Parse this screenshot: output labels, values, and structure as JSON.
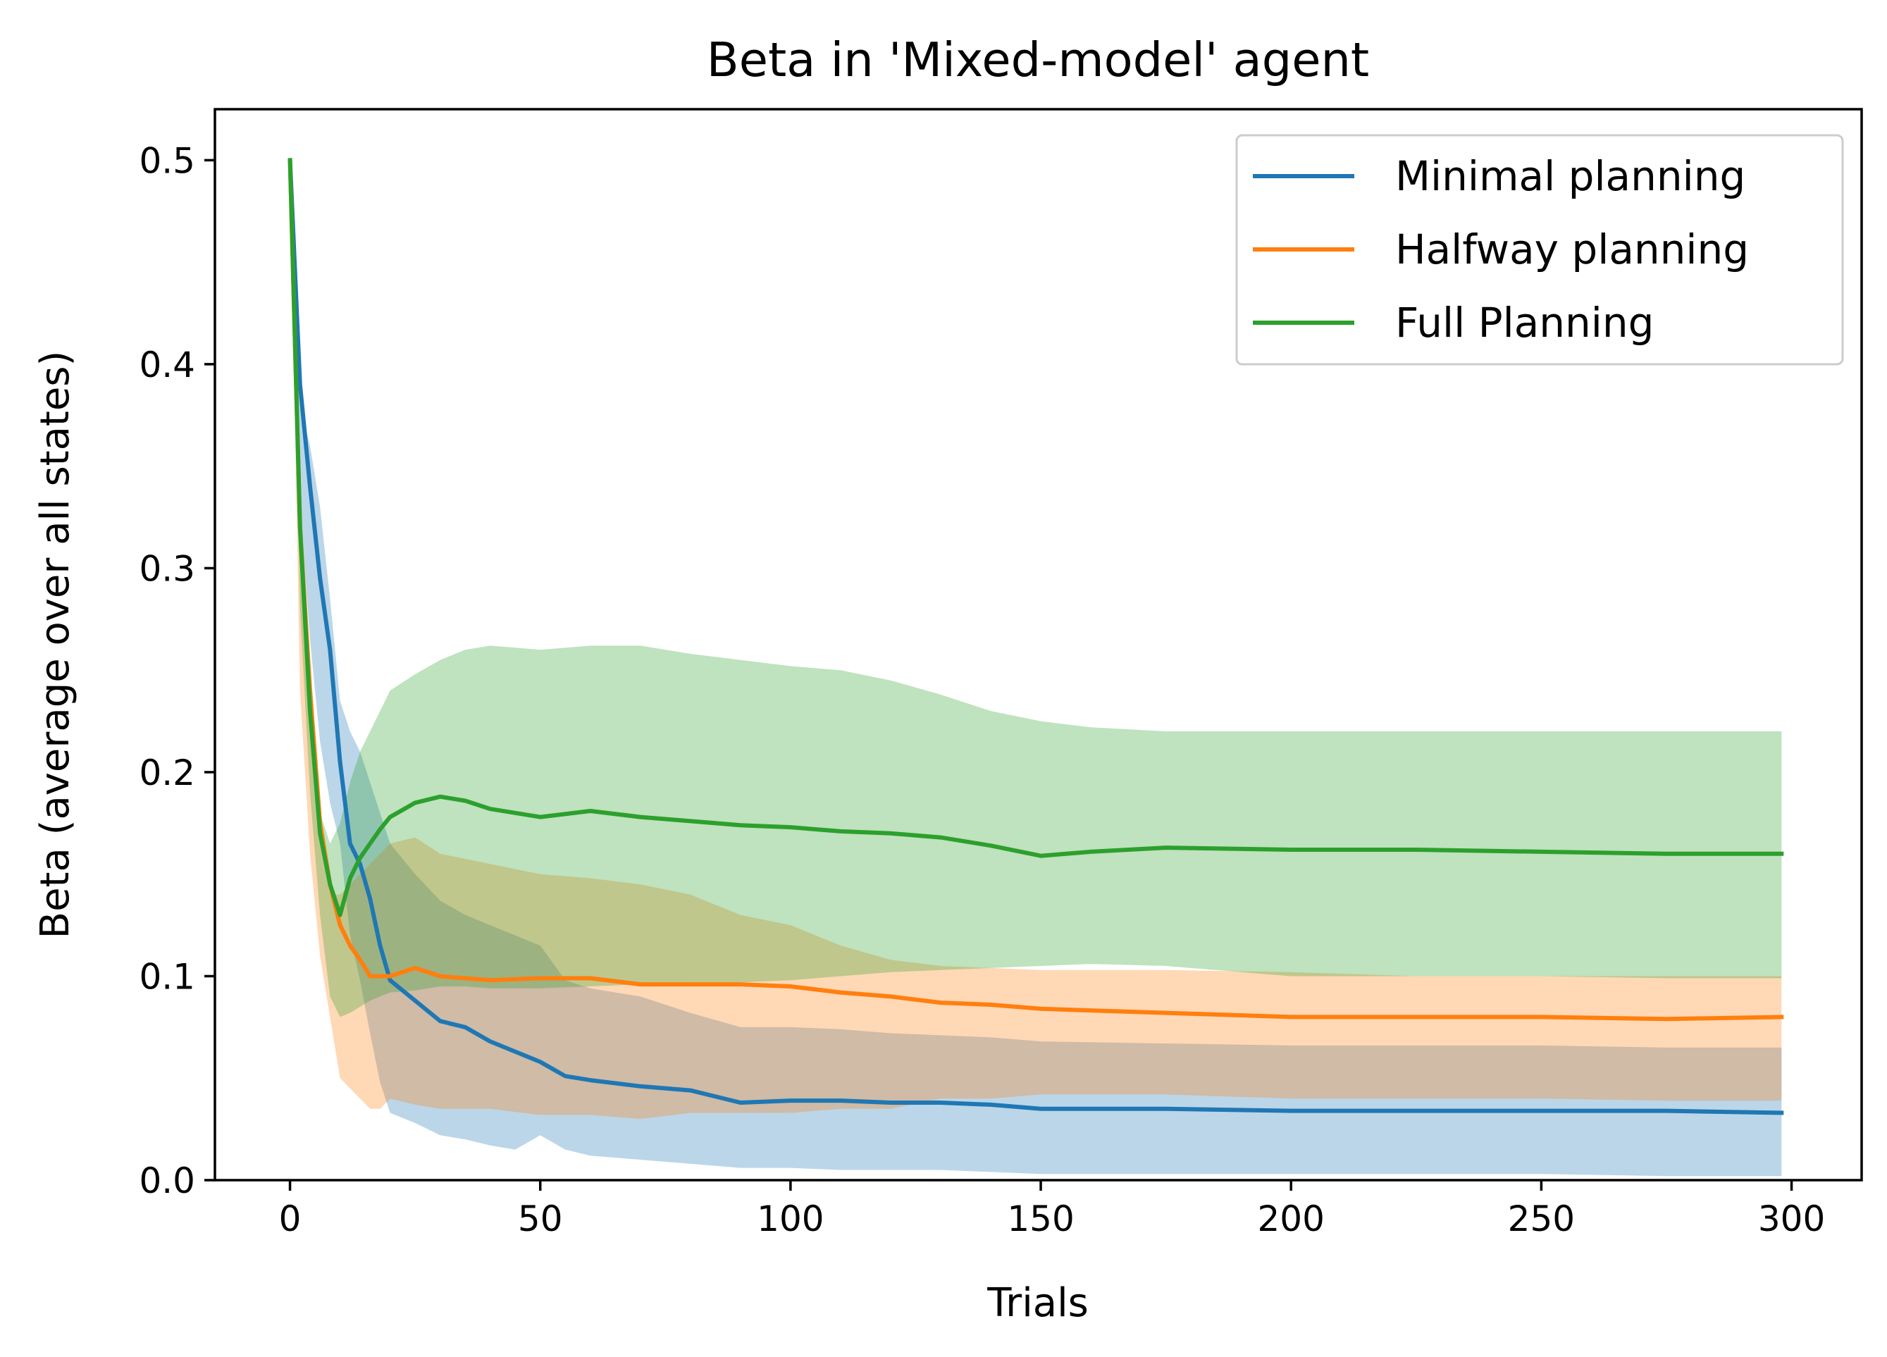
{
  "chart_data": {
    "type": "line",
    "title": "Beta in 'Mixed-model' agent",
    "xlabel": "Trials",
    "ylabel": "Beta (average over all states)",
    "xlim": [
      -15,
      314
    ],
    "ylim": [
      0.0,
      0.525
    ],
    "xticks": [
      0,
      50,
      100,
      150,
      200,
      250,
      300
    ],
    "yticks": [
      0.0,
      0.1,
      0.2,
      0.3,
      0.4,
      0.5
    ],
    "xtick_labels": [
      "0",
      "50",
      "100",
      "150",
      "200",
      "250",
      "300"
    ],
    "ytick_labels": [
      "0.0",
      "0.1",
      "0.2",
      "0.3",
      "0.4",
      "0.5"
    ],
    "grid": false,
    "legend_position": "top-right",
    "shaded_band": "mean ± spread",
    "series": [
      {
        "name": "Minimal planning",
        "color": "#1f77b4",
        "x": [
          0,
          2,
          4,
          6,
          8,
          10,
          12,
          14,
          16,
          18,
          20,
          25,
          30,
          35,
          40,
          45,
          50,
          55,
          60,
          70,
          80,
          90,
          100,
          110,
          120,
          130,
          140,
          150,
          175,
          200,
          225,
          250,
          275,
          298
        ],
        "y": [
          0.5,
          0.39,
          0.34,
          0.295,
          0.26,
          0.205,
          0.165,
          0.155,
          0.138,
          0.115,
          0.098,
          0.088,
          0.078,
          0.075,
          0.068,
          0.063,
          0.058,
          0.051,
          0.049,
          0.046,
          0.044,
          0.038,
          0.039,
          0.039,
          0.038,
          0.038,
          0.037,
          0.035,
          0.035,
          0.034,
          0.034,
          0.034,
          0.034,
          0.033
        ],
        "upper": [
          0.5,
          0.38,
          0.36,
          0.33,
          0.285,
          0.235,
          0.22,
          0.21,
          0.195,
          0.18,
          0.165,
          0.15,
          0.137,
          0.13,
          0.125,
          0.12,
          0.115,
          0.098,
          0.094,
          0.09,
          0.082,
          0.075,
          0.075,
          0.074,
          0.072,
          0.071,
          0.07,
          0.068,
          0.067,
          0.066,
          0.066,
          0.066,
          0.065,
          0.065
        ],
        "lower": [
          0.5,
          0.33,
          0.265,
          0.215,
          0.185,
          0.165,
          0.12,
          0.098,
          0.072,
          0.048,
          0.033,
          0.028,
          0.022,
          0.02,
          0.017,
          0.015,
          0.022,
          0.015,
          0.012,
          0.01,
          0.008,
          0.006,
          0.006,
          0.005,
          0.005,
          0.005,
          0.004,
          0.003,
          0.003,
          0.003,
          0.003,
          0.003,
          0.002,
          0.002
        ]
      },
      {
        "name": "Halfway planning",
        "color": "#ff7f0e",
        "x": [
          0,
          2,
          4,
          6,
          8,
          10,
          12,
          14,
          16,
          18,
          20,
          25,
          30,
          40,
          50,
          60,
          70,
          80,
          90,
          100,
          110,
          120,
          130,
          140,
          150,
          175,
          200,
          225,
          250,
          275,
          298
        ],
        "y": [
          0.5,
          0.32,
          0.24,
          0.175,
          0.145,
          0.125,
          0.115,
          0.108,
          0.1,
          0.1,
          0.1,
          0.104,
          0.1,
          0.098,
          0.099,
          0.099,
          0.096,
          0.096,
          0.096,
          0.095,
          0.092,
          0.09,
          0.087,
          0.086,
          0.084,
          0.082,
          0.08,
          0.08,
          0.08,
          0.079,
          0.08
        ],
        "upper": [
          0.5,
          0.3,
          0.22,
          0.165,
          0.14,
          0.14,
          0.145,
          0.15,
          0.155,
          0.16,
          0.165,
          0.168,
          0.16,
          0.155,
          0.15,
          0.148,
          0.145,
          0.14,
          0.13,
          0.125,
          0.115,
          0.108,
          0.105,
          0.104,
          0.103,
          0.103,
          0.102,
          0.1,
          0.1,
          0.1,
          0.1
        ],
        "lower": [
          0.5,
          0.24,
          0.16,
          0.11,
          0.08,
          0.05,
          0.045,
          0.04,
          0.035,
          0.035,
          0.04,
          0.037,
          0.035,
          0.035,
          0.032,
          0.032,
          0.03,
          0.033,
          0.033,
          0.033,
          0.035,
          0.035,
          0.04,
          0.04,
          0.042,
          0.042,
          0.04,
          0.04,
          0.04,
          0.039,
          0.039
        ]
      },
      {
        "name": "Full Planning",
        "color": "#2ca02c",
        "x": [
          0,
          2,
          4,
          6,
          8,
          10,
          12,
          14,
          16,
          18,
          20,
          25,
          30,
          35,
          40,
          50,
          60,
          70,
          80,
          90,
          100,
          110,
          120,
          130,
          140,
          150,
          160,
          175,
          200,
          225,
          250,
          275,
          298
        ],
        "y": [
          0.5,
          0.32,
          0.23,
          0.17,
          0.145,
          0.13,
          0.148,
          0.158,
          0.165,
          0.172,
          0.178,
          0.185,
          0.188,
          0.186,
          0.182,
          0.178,
          0.181,
          0.178,
          0.176,
          0.174,
          0.173,
          0.171,
          0.17,
          0.168,
          0.164,
          0.159,
          0.161,
          0.163,
          0.162,
          0.162,
          0.161,
          0.16,
          0.16
        ],
        "upper": [
          0.5,
          0.33,
          0.24,
          0.18,
          0.165,
          0.175,
          0.195,
          0.21,
          0.22,
          0.23,
          0.24,
          0.248,
          0.255,
          0.26,
          0.262,
          0.26,
          0.262,
          0.262,
          0.258,
          0.255,
          0.252,
          0.25,
          0.245,
          0.238,
          0.23,
          0.225,
          0.222,
          0.22,
          0.22,
          0.22,
          0.22,
          0.22,
          0.22
        ],
        "lower": [
          0.5,
          0.28,
          0.19,
          0.13,
          0.09,
          0.08,
          0.082,
          0.085,
          0.088,
          0.09,
          0.092,
          0.093,
          0.095,
          0.095,
          0.094,
          0.094,
          0.095,
          0.096,
          0.097,
          0.097,
          0.098,
          0.1,
          0.102,
          0.103,
          0.104,
          0.105,
          0.106,
          0.105,
          0.1,
          0.1,
          0.1,
          0.099,
          0.099
        ]
      }
    ]
  }
}
